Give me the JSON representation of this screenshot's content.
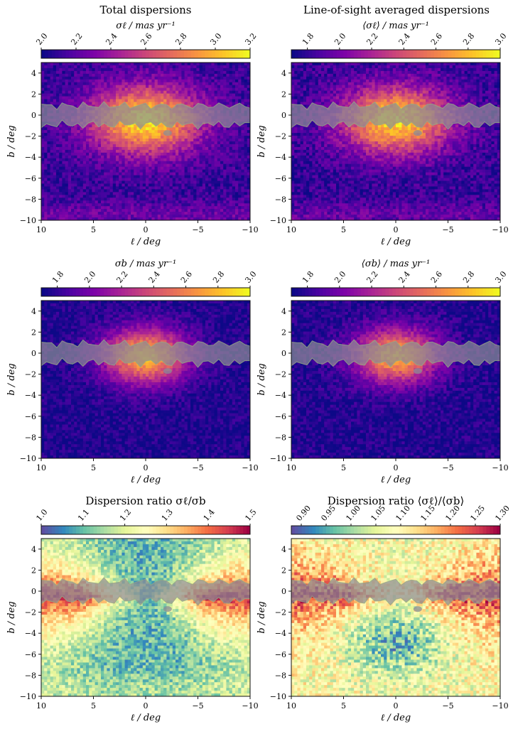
{
  "figure": {
    "col_titles": [
      "Total dispersions",
      "Line-of-sight averaged dispersions"
    ]
  },
  "chart_data": [
    {
      "type": "heatmap",
      "title": "Total dispersions",
      "colorbar": {
        "label": "σℓ / mas yr⁻¹",
        "cmap": "plasma",
        "range": [
          2.0,
          3.2
        ],
        "ticks": [
          2.0,
          2.2,
          2.4,
          2.6,
          2.8,
          3.0,
          3.2
        ],
        "tick_labels": [
          "2.0",
          "2.2",
          "2.4",
          "2.6",
          "2.8",
          "3.0",
          "3.2"
        ]
      },
      "xlabel": "ℓ / deg",
      "ylabel": "b / deg",
      "xlim": [
        10,
        -10
      ],
      "ylim": [
        -10,
        5
      ],
      "xticks": [
        10,
        5,
        0,
        -5,
        -10
      ],
      "xtick_labels": [
        "10",
        "5",
        "0",
        "−5",
        "−10"
      ],
      "yticks": [
        4,
        2,
        0,
        -2,
        -4,
        -6,
        -8,
        -10
      ],
      "ytick_labels": [
        "4",
        "2",
        "0",
        "−2",
        "−4",
        "−6",
        "−8",
        "−10"
      ],
      "pattern": {
        "kind": "bulge",
        "low": 2.1,
        "high": 3.15,
        "noise": 0.12
      }
    },
    {
      "type": "heatmap",
      "title": "Line-of-sight averaged dispersions",
      "colorbar": {
        "label": "⟨σℓ⟩ / mas yr⁻¹",
        "cmap": "plasma",
        "range": [
          1.7,
          3.0
        ],
        "ticks": [
          1.8,
          2.0,
          2.2,
          2.4,
          2.6,
          2.8,
          3.0
        ],
        "tick_labels": [
          "1.8",
          "2.0",
          "2.2",
          "2.4",
          "2.6",
          "2.8",
          "3.0"
        ]
      },
      "xlabel": "ℓ / deg",
      "ylabel": "b / deg",
      "xlim": [
        10,
        -10
      ],
      "ylim": [
        -10,
        5
      ],
      "xticks": [
        10,
        5,
        0,
        -5,
        -10
      ],
      "xtick_labels": [
        "10",
        "5",
        "0",
        "−5",
        "−10"
      ],
      "yticks": [
        4,
        2,
        0,
        -2,
        -4,
        -6,
        -8,
        -10
      ],
      "ytick_labels": [
        "4",
        "2",
        "0",
        "−2",
        "−4",
        "−6",
        "−8",
        "−10"
      ],
      "pattern": {
        "kind": "bulge",
        "low": 1.8,
        "high": 2.9,
        "noise": 0.14
      }
    },
    {
      "type": "heatmap",
      "title": "",
      "colorbar": {
        "label": "σb / mas yr⁻¹",
        "cmap": "plasma",
        "range": [
          1.7,
          3.0
        ],
        "ticks": [
          1.8,
          2.0,
          2.2,
          2.4,
          2.6,
          2.8,
          3.0
        ],
        "tick_labels": [
          "1.8",
          "2.0",
          "2.2",
          "2.4",
          "2.6",
          "2.8",
          "3.0"
        ]
      },
      "xlabel": "ℓ / deg",
      "ylabel": "b / deg",
      "xlim": [
        10,
        -10
      ],
      "ylim": [
        -10,
        5
      ],
      "xticks": [
        10,
        5,
        0,
        -5,
        -10
      ],
      "xtick_labels": [
        "10",
        "5",
        "0",
        "−5",
        "−10"
      ],
      "yticks": [
        4,
        2,
        0,
        -2,
        -4,
        -6,
        -8,
        -10
      ],
      "ytick_labels": [
        "4",
        "2",
        "0",
        "−2",
        "−4",
        "−6",
        "−8",
        "−10"
      ],
      "pattern": {
        "kind": "bulge_narrow",
        "low": 1.75,
        "high": 2.8,
        "noise": 0.1
      }
    },
    {
      "type": "heatmap",
      "title": "",
      "colorbar": {
        "label": "⟨σb⟩ / mas yr⁻¹",
        "cmap": "plasma",
        "range": [
          1.7,
          3.0
        ],
        "ticks": [
          1.8,
          2.0,
          2.2,
          2.4,
          2.6,
          2.8,
          3.0
        ],
        "tick_labels": [
          "1.8",
          "2.0",
          "2.2",
          "2.4",
          "2.6",
          "2.8",
          "3.0"
        ]
      },
      "xlabel": "ℓ / deg",
      "ylabel": "b / deg",
      "xlim": [
        10,
        -10
      ],
      "ylim": [
        -10,
        5
      ],
      "xticks": [
        10,
        5,
        0,
        -5,
        -10
      ],
      "xtick_labels": [
        "10",
        "5",
        "0",
        "−5",
        "−10"
      ],
      "yticks": [
        4,
        2,
        0,
        -2,
        -4,
        -6,
        -8,
        -10
      ],
      "ytick_labels": [
        "4",
        "2",
        "0",
        "−2",
        "−4",
        "−6",
        "−8",
        "−10"
      ],
      "pattern": {
        "kind": "bulge_narrow",
        "low": 1.75,
        "high": 2.75,
        "noise": 0.11
      }
    },
    {
      "type": "heatmap",
      "title": "Dispersion ratio σℓ/σb",
      "colorbar": {
        "label": "",
        "cmap": "spectral_r",
        "range": [
          1.0,
          1.5
        ],
        "ticks": [
          1.0,
          1.1,
          1.2,
          1.3,
          1.4,
          1.5
        ],
        "tick_labels": [
          "1.0",
          "1.1",
          "1.2",
          "1.3",
          "1.4",
          "1.5"
        ]
      },
      "xlabel": "ℓ / deg",
      "ylabel": "b / deg",
      "xlim": [
        10,
        -10
      ],
      "ylim": [
        -10,
        5
      ],
      "xticks": [
        10,
        5,
        0,
        -5,
        -10
      ],
      "xtick_labels": [
        "10",
        "5",
        "0",
        "−5",
        "−10"
      ],
      "yticks": [
        4,
        2,
        0,
        -2,
        -4,
        -6,
        -8,
        -10
      ],
      "ytick_labels": [
        "4",
        "2",
        "0",
        "−2",
        "−4",
        "−6",
        "−8",
        "−10"
      ],
      "pattern": {
        "kind": "ratio",
        "low": 1.05,
        "high": 1.48,
        "noise": 0.06
      }
    },
    {
      "type": "heatmap",
      "title": "Dispersion ratio ⟨σℓ⟩/⟨σb⟩",
      "colorbar": {
        "label": "",
        "cmap": "spectral_r",
        "range": [
          0.88,
          1.3
        ],
        "ticks": [
          0.9,
          0.95,
          1.0,
          1.05,
          1.1,
          1.15,
          1.2,
          1.25,
          1.3
        ],
        "tick_labels": [
          "0.90",
          "0.95",
          "1.00",
          "1.05",
          "1.10",
          "1.15",
          "1.20",
          "1.25",
          "1.30"
        ]
      },
      "xlabel": "ℓ / deg",
      "ylabel": "b / deg",
      "xlim": [
        10,
        -10
      ],
      "ylim": [
        -10,
        5
      ],
      "xticks": [
        10,
        5,
        0,
        -5,
        -10
      ],
      "xtick_labels": [
        "10",
        "5",
        "0",
        "−5",
        "−10"
      ],
      "yticks": [
        4,
        2,
        0,
        -2,
        -4,
        -6,
        -8,
        -10
      ],
      "ytick_labels": [
        "4",
        "2",
        "0",
        "−2",
        "−4",
        "−6",
        "−8",
        "−10"
      ],
      "pattern": {
        "kind": "ratio_los",
        "low": 0.93,
        "high": 1.28,
        "noise": 0.07
      }
    }
  ]
}
